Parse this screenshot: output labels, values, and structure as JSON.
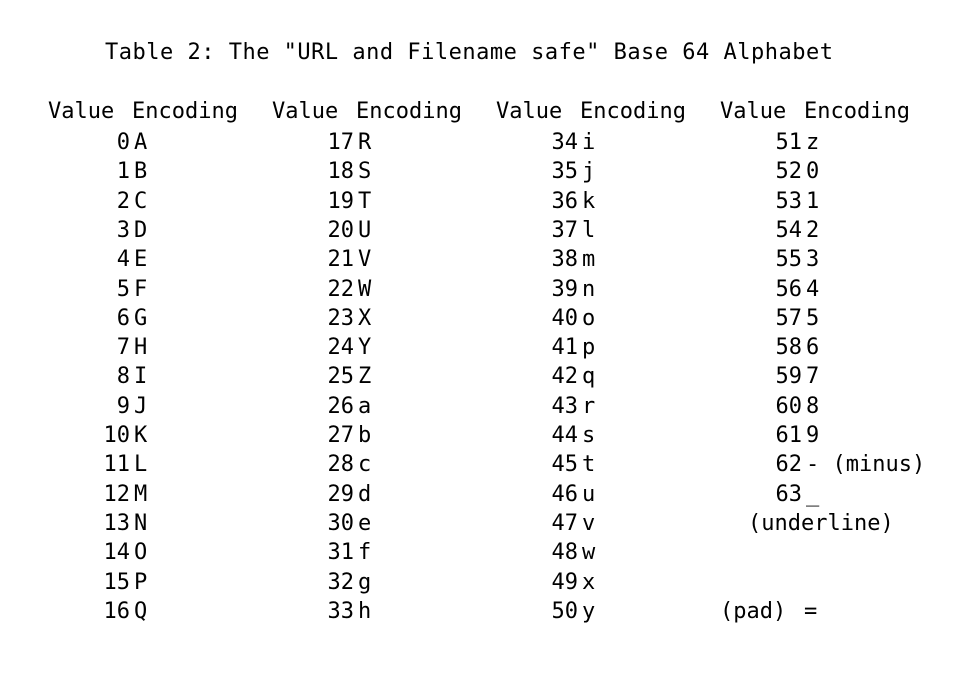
{
  "title": "Table 2: The \"URL and Filename safe\" Base 64 Alphabet",
  "headers": [
    {
      "value": "Value",
      "encoding": "Encoding"
    },
    {
      "value": "Value",
      "encoding": "Encoding"
    },
    {
      "value": "Value",
      "encoding": "Encoding"
    },
    {
      "value": "Value",
      "encoding": "Encoding"
    }
  ],
  "columns": [
    [
      {
        "value": "0",
        "encoding": "A"
      },
      {
        "value": "1",
        "encoding": "B"
      },
      {
        "value": "2",
        "encoding": "C"
      },
      {
        "value": "3",
        "encoding": "D"
      },
      {
        "value": "4",
        "encoding": "E"
      },
      {
        "value": "5",
        "encoding": "F"
      },
      {
        "value": "6",
        "encoding": "G"
      },
      {
        "value": "7",
        "encoding": "H"
      },
      {
        "value": "8",
        "encoding": "I"
      },
      {
        "value": "9",
        "encoding": "J"
      },
      {
        "value": "10",
        "encoding": "K"
      },
      {
        "value": "11",
        "encoding": "L"
      },
      {
        "value": "12",
        "encoding": "M"
      },
      {
        "value": "13",
        "encoding": "N"
      },
      {
        "value": "14",
        "encoding": "O"
      },
      {
        "value": "15",
        "encoding": "P"
      },
      {
        "value": "16",
        "encoding": "Q"
      }
    ],
    [
      {
        "value": "17",
        "encoding": "R"
      },
      {
        "value": "18",
        "encoding": "S"
      },
      {
        "value": "19",
        "encoding": "T"
      },
      {
        "value": "20",
        "encoding": "U"
      },
      {
        "value": "21",
        "encoding": "V"
      },
      {
        "value": "22",
        "encoding": "W"
      },
      {
        "value": "23",
        "encoding": "X"
      },
      {
        "value": "24",
        "encoding": "Y"
      },
      {
        "value": "25",
        "encoding": "Z"
      },
      {
        "value": "26",
        "encoding": "a"
      },
      {
        "value": "27",
        "encoding": "b"
      },
      {
        "value": "28",
        "encoding": "c"
      },
      {
        "value": "29",
        "encoding": "d"
      },
      {
        "value": "30",
        "encoding": "e"
      },
      {
        "value": "31",
        "encoding": "f"
      },
      {
        "value": "32",
        "encoding": "g"
      },
      {
        "value": "33",
        "encoding": "h"
      }
    ],
    [
      {
        "value": "34",
        "encoding": "i"
      },
      {
        "value": "35",
        "encoding": "j"
      },
      {
        "value": "36",
        "encoding": "k"
      },
      {
        "value": "37",
        "encoding": "l"
      },
      {
        "value": "38",
        "encoding": "m"
      },
      {
        "value": "39",
        "encoding": "n"
      },
      {
        "value": "40",
        "encoding": "o"
      },
      {
        "value": "41",
        "encoding": "p"
      },
      {
        "value": "42",
        "encoding": "q"
      },
      {
        "value": "43",
        "encoding": "r"
      },
      {
        "value": "44",
        "encoding": "s"
      },
      {
        "value": "45",
        "encoding": "t"
      },
      {
        "value": "46",
        "encoding": "u"
      },
      {
        "value": "47",
        "encoding": "v"
      },
      {
        "value": "48",
        "encoding": "w"
      },
      {
        "value": "49",
        "encoding": "x"
      },
      {
        "value": "50",
        "encoding": "y"
      }
    ],
    [
      {
        "value": "51",
        "encoding": "z"
      },
      {
        "value": "52",
        "encoding": "0"
      },
      {
        "value": "53",
        "encoding": "1"
      },
      {
        "value": "54",
        "encoding": "2"
      },
      {
        "value": "55",
        "encoding": "3"
      },
      {
        "value": "56",
        "encoding": "4"
      },
      {
        "value": "57",
        "encoding": "5"
      },
      {
        "value": "58",
        "encoding": "6"
      },
      {
        "value": "59",
        "encoding": "7"
      },
      {
        "value": "60",
        "encoding": "8"
      },
      {
        "value": "61",
        "encoding": "9"
      },
      {
        "value": "62",
        "encoding": "- (minus)"
      },
      {
        "value": "63",
        "encoding": "_"
      },
      {
        "value": "",
        "encoding": "(underline)"
      },
      {
        "value": "",
        "encoding": ""
      },
      {
        "value": "",
        "encoding": ""
      },
      {
        "value": "(pad)",
        "encoding": "="
      }
    ]
  ]
}
